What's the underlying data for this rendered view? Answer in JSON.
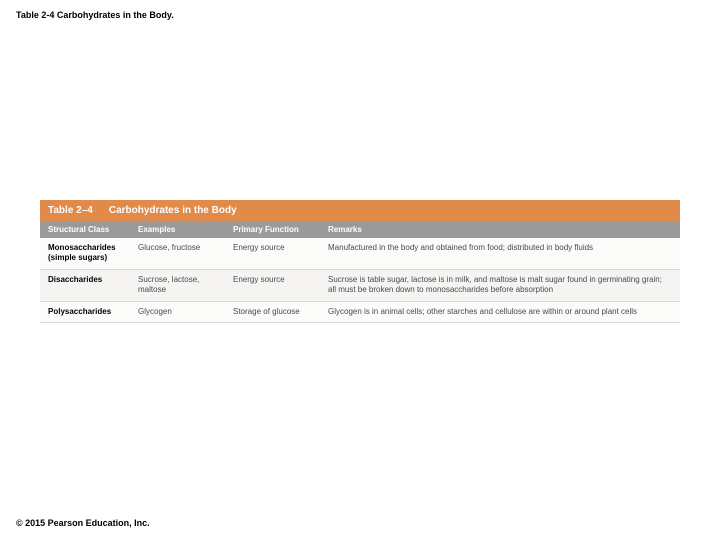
{
  "caption": "Table 2-4 Carbohydrates in the Body.",
  "table": {
    "number": "Table 2–4",
    "title": "Carbohydrates in the Body",
    "title_bar_bg": "#e18a4a",
    "title_bar_fg": "#ffffff",
    "header_bg": "#9a9a9a",
    "header_fg": "#ffffff",
    "columns": [
      "Structural Class",
      "Examples",
      "Primary Function",
      "Remarks"
    ],
    "rows": [
      {
        "structural_class": "Monosaccharides (simple sugars)",
        "examples": "Glucose, fructose",
        "primary_function": "Energy source",
        "remarks": "Manufactured in the body and obtained from food; distributed in body fluids"
      },
      {
        "structural_class": "Disaccharides",
        "examples": "Sucrose, lactose, maltose",
        "primary_function": "Energy source",
        "remarks": "Sucrose is table sugar, lactose is in milk, and maltose is malt sugar found in germinating grain; all must be broken down to monosaccharides before absorption"
      },
      {
        "structural_class": "Polysaccharides",
        "examples": "Glycogen",
        "primary_function": "Storage of glucose",
        "remarks": "Glycogen is in animal cells; other starches and cellulose are within or around plant cells"
      }
    ]
  },
  "copyright": "© 2015 Pearson Education, Inc."
}
